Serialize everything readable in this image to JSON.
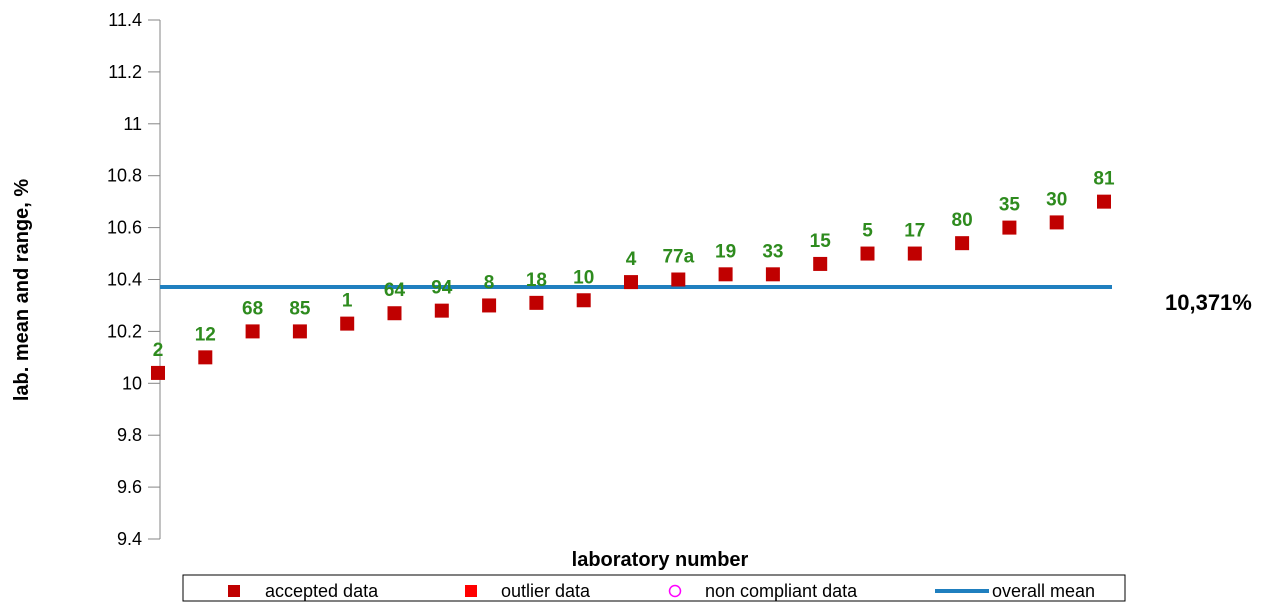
{
  "chart_data": {
    "type": "scatter",
    "xlabel": "laboratory number",
    "ylabel": "lab. mean and range, %",
    "ylim": [
      9.4,
      11.4
    ],
    "yticks": [
      "9.4",
      "9.6",
      "9.8",
      "10",
      "10.2",
      "10.4",
      "10.6",
      "10.8",
      "11",
      "11.2",
      "11.4"
    ],
    "grid": false,
    "legend_position": "bottom",
    "labs": [
      "2",
      "12",
      "68",
      "85",
      "1",
      "64",
      "94",
      "8",
      "18",
      "10",
      "4",
      "77a",
      "19",
      "33",
      "15",
      "5",
      "17",
      "80",
      "35",
      "30",
      "81"
    ],
    "series": [
      {
        "name": "accepted data",
        "marker": "square",
        "color": "#c00000",
        "values": [
          10.04,
          10.1,
          10.2,
          10.2,
          10.23,
          10.27,
          10.28,
          10.3,
          10.31,
          10.32,
          10.39,
          10.4,
          10.42,
          10.42,
          10.46,
          10.5,
          10.5,
          10.54,
          10.6,
          10.62,
          10.7
        ]
      }
    ],
    "overall_mean": {
      "name": "overall mean",
      "value": 10.371,
      "label": "10,371%",
      "color": "#1f7fbf"
    },
    "legend": [
      {
        "label": "accepted data",
        "symbol": "square",
        "color": "#c00000"
      },
      {
        "label": "outlier data",
        "symbol": "square",
        "color": "#ff0000"
      },
      {
        "label": "non compliant data",
        "symbol": "circle",
        "color": "#ff00ff"
      },
      {
        "label": "overall mean",
        "symbol": "line",
        "color": "#1f7fbf"
      }
    ],
    "point_label_color": "#2e8b1e"
  }
}
